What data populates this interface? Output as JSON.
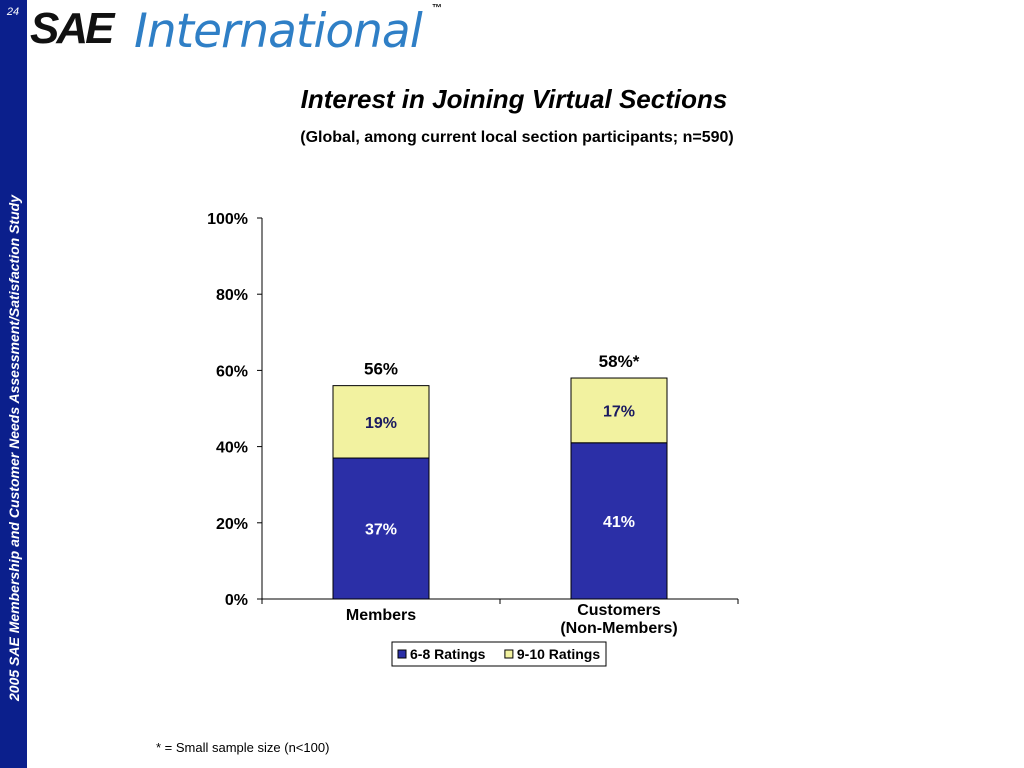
{
  "slide": {
    "page_number": "24",
    "side_text": "2005 SAE Membership and Customer Needs Assessment/Satisfaction Study",
    "logo": {
      "brand": "SAE",
      "name": "International",
      "tm": "™"
    },
    "footnote": "* =  Small sample size (n<100)"
  },
  "colors": {
    "sidebar": "#0b1f8c",
    "series_6_8": "#2b2fa7",
    "series_9_10": "#f2f2a0",
    "logo_blue": "#2f7fc6"
  },
  "chart_data": {
    "type": "bar",
    "stacked": true,
    "title": "Interest in Joining Virtual Sections",
    "subtitle": "(Global, among current local section participants; n=590)",
    "categories": [
      [
        "Members"
      ],
      [
        "Customers",
        "(Non-Members)"
      ]
    ],
    "series": [
      {
        "name": "6-8 Ratings",
        "values": [
          37,
          41
        ],
        "labels": [
          "37%",
          "41%"
        ],
        "color": "#2b2fa7",
        "label_color": "#ffffff"
      },
      {
        "name": "9-10 Ratings",
        "values": [
          19,
          17
        ],
        "labels": [
          "19%",
          "17%"
        ],
        "color": "#f2f2a0",
        "label_color": "#1a1a60"
      }
    ],
    "totals": [
      "56%",
      "58%*"
    ],
    "ylim": [
      0,
      100
    ],
    "yticks": [
      "0%",
      "20%",
      "40%",
      "60%",
      "80%",
      "100%"
    ],
    "grid": false,
    "legend": "bottom-center"
  }
}
